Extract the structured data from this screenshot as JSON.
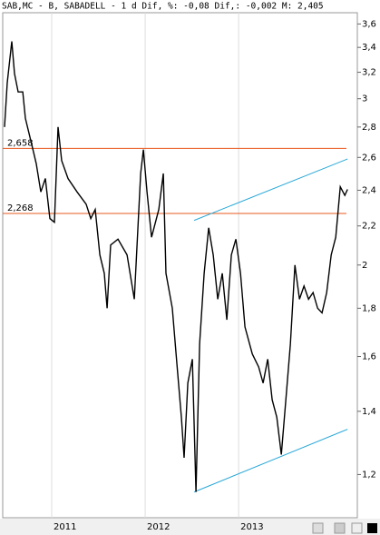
{
  "chart_data": {
    "type": "line",
    "title": "SAB,MC - B, SABADELL -  1 d Dif, %: -0,08 Dif,: -0,002 M: 2,405",
    "x": [
      2010.495,
      2010.525,
      2010.573,
      2010.602,
      2010.641,
      2010.69,
      2010.719,
      2010.787,
      2010.835,
      2010.884,
      2010.932,
      2010.981,
      2011.029,
      2011.068,
      2011.107,
      2011.175,
      2011.272,
      2011.369,
      2011.418,
      2011.466,
      2011.515,
      2011.563,
      2011.593,
      2011.631,
      2011.709,
      2011.806,
      2011.884,
      2011.952,
      2011.981,
      2012.02,
      2012.068,
      2012.146,
      2012.194,
      2012.223,
      2012.291,
      2012.34,
      2012.388,
      2012.417,
      2012.456,
      2012.505,
      2012.544,
      2012.583,
      2012.631,
      2012.68,
      2012.728,
      2012.777,
      2012.825,
      2012.874,
      2012.922,
      2012.971,
      2013.02,
      2013.068,
      2013.146,
      2013.214,
      2013.262,
      2013.311,
      2013.359,
      2013.408,
      2013.457,
      2013.505,
      2013.554,
      2013.602,
      2013.651,
      2013.699,
      2013.748,
      2013.796,
      2013.845,
      2013.893,
      2013.942,
      2013.991,
      2014.039,
      2014.088,
      2014.136,
      2014.165
    ],
    "values": [
      2.8,
      3.12,
      3.45,
      3.19,
      3.05,
      3.05,
      2.86,
      2.68,
      2.56,
      2.39,
      2.47,
      2.24,
      2.22,
      2.8,
      2.58,
      2.47,
      2.39,
      2.32,
      2.24,
      2.29,
      2.05,
      1.96,
      1.8,
      2.1,
      2.13,
      2.05,
      1.84,
      2.5,
      2.65,
      2.39,
      2.14,
      2.29,
      2.5,
      1.96,
      1.8,
      1.57,
      1.38,
      1.25,
      1.5,
      1.59,
      1.15,
      1.65,
      1.96,
      2.19,
      2.05,
      1.84,
      1.96,
      1.75,
      2.05,
      2.13,
      1.96,
      1.72,
      1.61,
      1.56,
      1.5,
      1.59,
      1.44,
      1.38,
      1.26,
      1.44,
      1.65,
      2.0,
      1.84,
      1.9,
      1.84,
      1.87,
      1.8,
      1.78,
      1.87,
      2.05,
      2.14,
      2.42,
      2.37,
      2.405
    ],
    "color": "#000000",
    "log_scale": true,
    "ylim": [
      1.08,
      3.7
    ],
    "yticks": [
      {
        "value": 1.2,
        "label": "1,2"
      },
      {
        "value": 1.4,
        "label": "1,4"
      },
      {
        "value": 1.6,
        "label": "1,6"
      },
      {
        "value": 1.8,
        "label": "1,8"
      },
      2,
      {
        "value": 2.2,
        "label": "2,2"
      },
      {
        "value": 2.4,
        "label": "2,4"
      },
      {
        "value": 2.6,
        "label": "2,6"
      },
      {
        "value": 2.8,
        "label": "2,8"
      },
      3,
      {
        "value": 3.2,
        "label": "3,2"
      },
      {
        "value": 3.4,
        "label": "3,4"
      },
      {
        "value": 3.6,
        "label": "3,6"
      }
    ],
    "xlim": [
      2010.476,
      2014.27
    ],
    "xticks": [
      2011,
      2012,
      2013
    ],
    "grid": true,
    "hlines": [
      {
        "value": 2.658,
        "label": "2,658",
        "color": "#e8581c"
      },
      {
        "value": 2.268,
        "label": "2,268",
        "color": "#e8581c"
      }
    ],
    "trendlines": [
      {
        "x": [
          2012.524,
          2014.165
        ],
        "values": [
          2.23,
          2.59
        ],
        "color": "#29a8d8"
      },
      {
        "x": [
          2012.524,
          2014.165
        ],
        "values": [
          1.15,
          1.34
        ],
        "color": "#29a8d8"
      }
    ]
  }
}
